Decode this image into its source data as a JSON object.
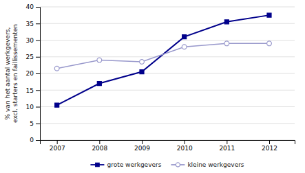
{
  "chart_data": {
    "type": "line",
    "y_label": "% van het aantal werkgevers,\nexcl. starters en faillissementen",
    "x": [
      2007,
      2008,
      2009,
      2010,
      2011,
      2012
    ],
    "series": [
      {
        "name": "grote werkgevers",
        "color": "#00008B",
        "marker": "square",
        "line_style": "solid",
        "values": [
          10.5,
          17.0,
          20.5,
          31.0,
          35.5,
          37.5
        ]
      },
      {
        "name": "kleine werkgevers",
        "color": "#9999CC",
        "marker": "open-circle",
        "line_style": "solid",
        "values": [
          21.5,
          24.0,
          23.5,
          28.0,
          29.0,
          29.0
        ]
      }
    ],
    "xlim": [
      2006.6,
      2012.6
    ],
    "xticks": [
      2007,
      2008,
      2009,
      2010,
      2011,
      2012
    ],
    "ylim": [
      0,
      40
    ],
    "yticks": [
      0,
      5,
      10,
      15,
      20,
      25,
      30,
      35,
      40
    ],
    "grid": true,
    "legend": "bottom"
  }
}
